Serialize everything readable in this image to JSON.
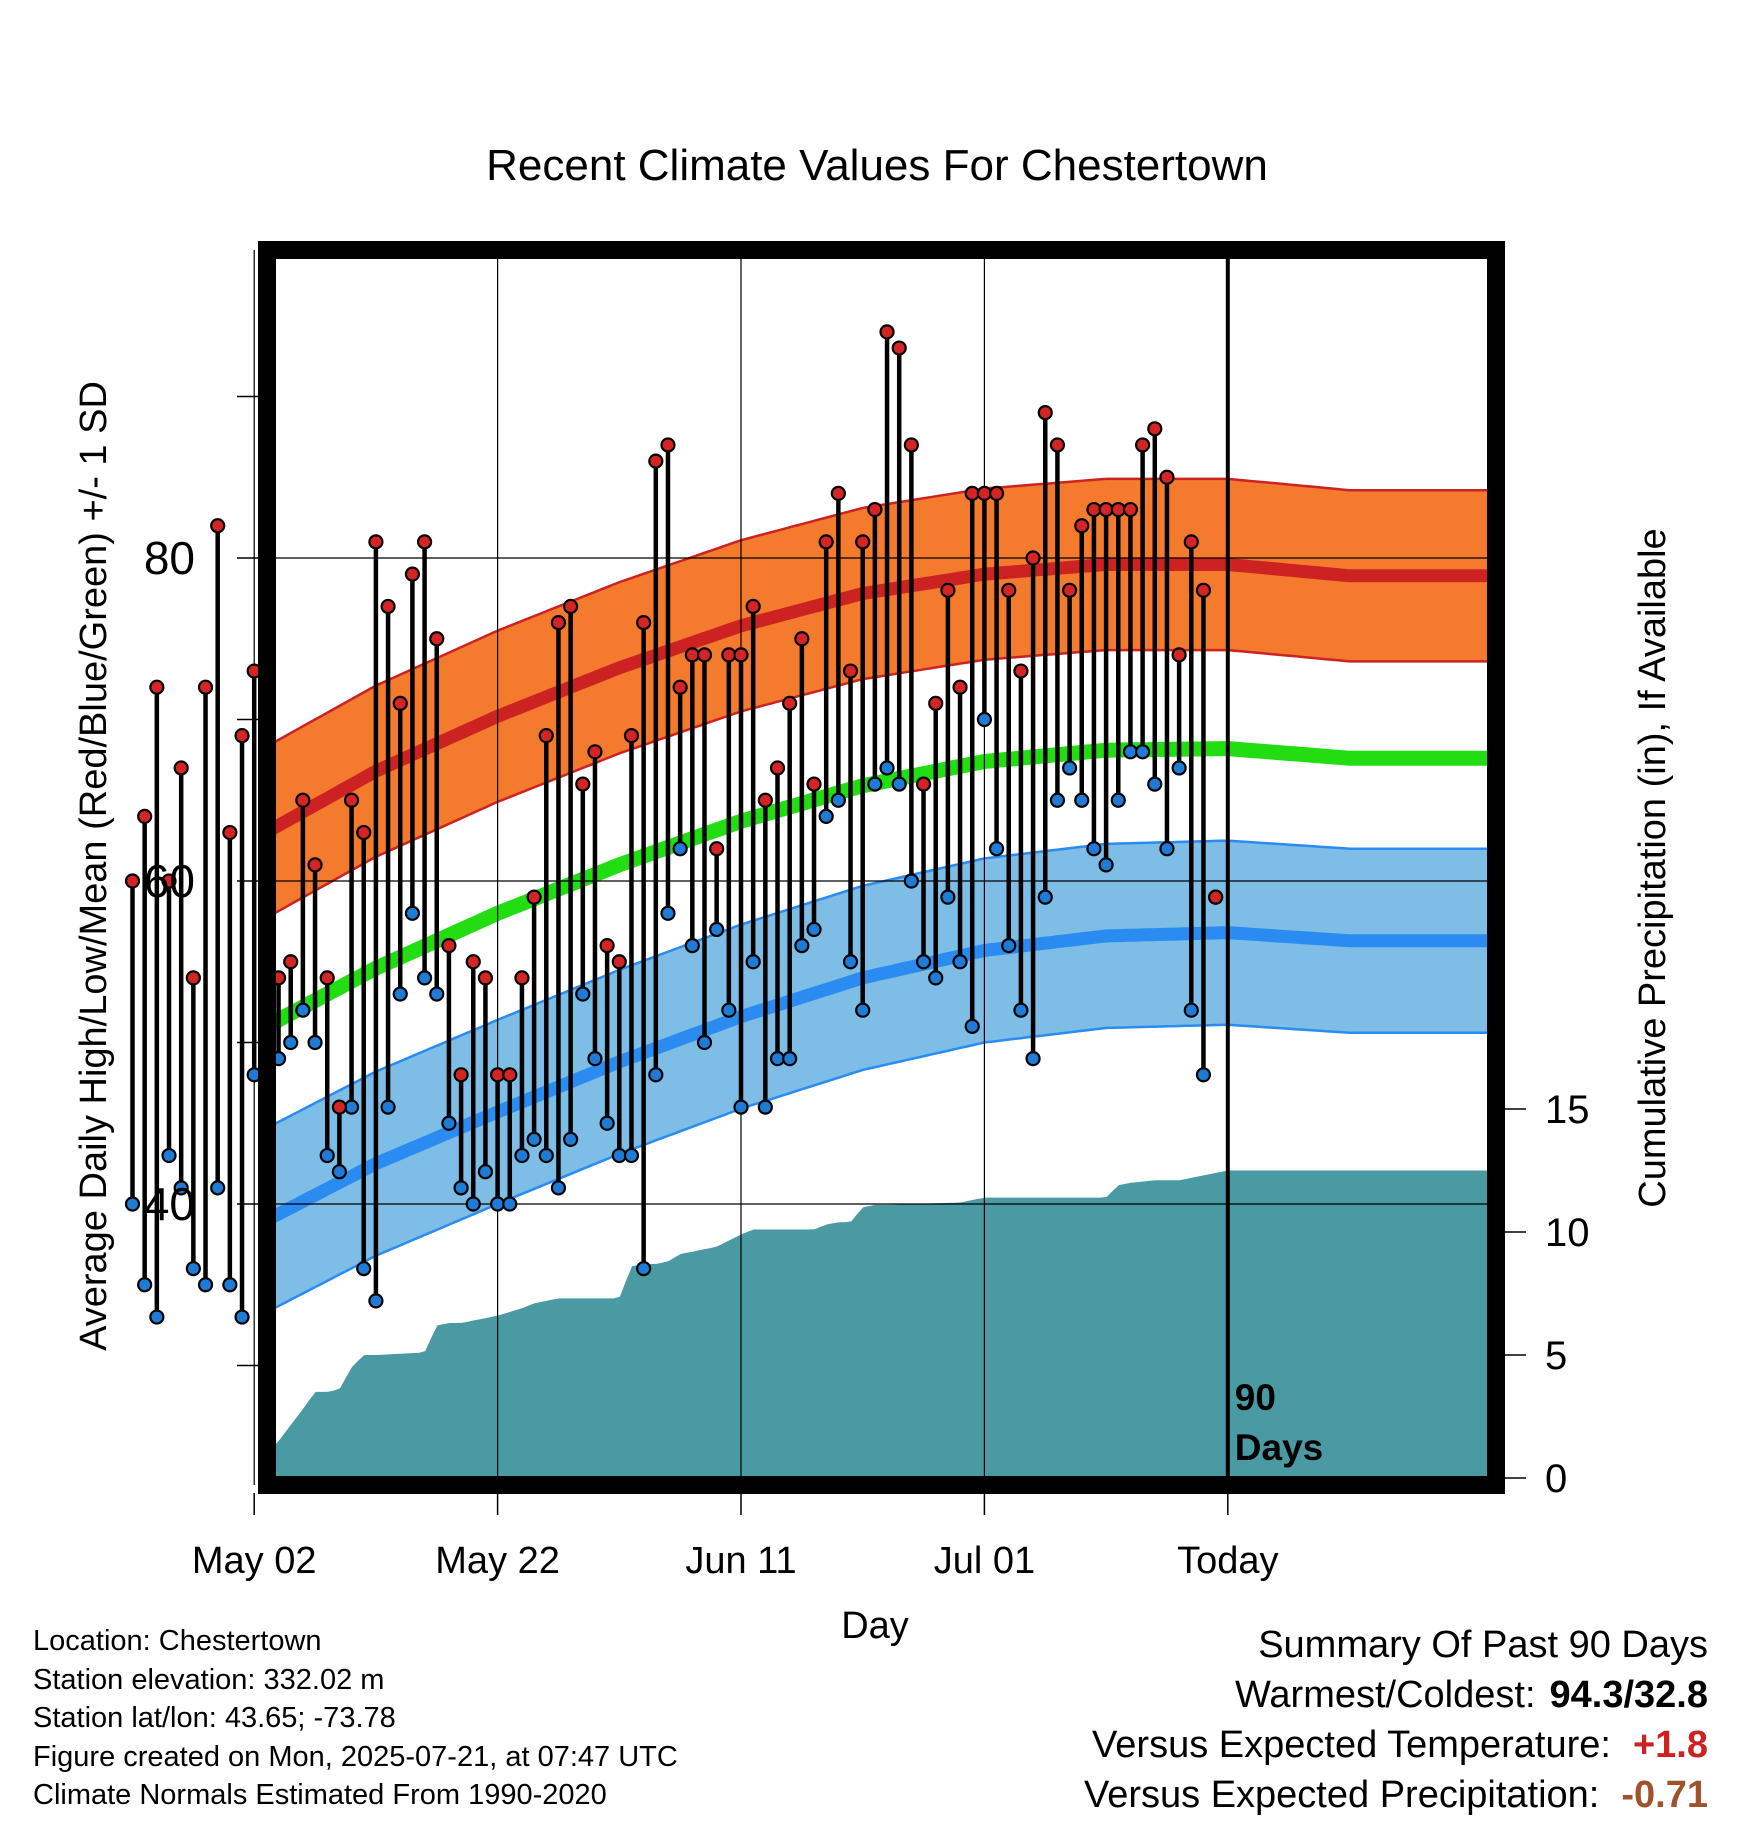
{
  "colors": {
    "high_band": "#f47a2e",
    "high_band_edge": "#cc2222",
    "high_mean": "#cc2222",
    "low_band": "#7dbde6",
    "low_band_edge": "#2a8cf0",
    "low_mean": "#2a8cf0",
    "mean_line": "#22dd11",
    "precip_fill": "#4a9aa4",
    "high_marker": "#d42424",
    "low_marker": "#1f7cd6",
    "warm_value": "#cc2222",
    "precip_value": "#a0522d"
  },
  "chart_data": {
    "type": "line",
    "title": "Recent Climate Values For Chestertown",
    "xlabel": "Day",
    "ylabel": "Average Daily High/Low/Mean (Red/Blue/Green) +/- 1 SD",
    "y2label": "Cumulative Precipitation (in), If Available",
    "xlim": [
      0,
      100
    ],
    "ylim": [
      24,
      100
    ],
    "y2lim": [
      0,
      50
    ],
    "yticks": [
      40,
      60,
      80
    ],
    "y2ticks": [
      0,
      5,
      10,
      15
    ],
    "x_tick_days": [
      10,
      30,
      50,
      70,
      90
    ],
    "x_tick_labels": [
      "May 02",
      "May 22",
      "Jun 11",
      "Jul 01",
      "Today"
    ],
    "today_marker": {
      "day": 90,
      "label": [
        "90",
        "Days"
      ]
    },
    "grid": true,
    "normal_high": {
      "days": [
        0,
        10,
        20,
        30,
        40,
        50,
        60,
        70,
        80,
        90,
        100
      ],
      "mean": [
        57.5,
        62.6,
        66.8,
        70.2,
        73.2,
        75.8,
        77.8,
        79,
        79.6,
        79.6,
        78.9
      ],
      "sd": [
        5.3
      ]
    },
    "normal_low": {
      "days": [
        0,
        10,
        20,
        30,
        40,
        50,
        60,
        70,
        80,
        90,
        100
      ],
      "mean": [
        34.2,
        38.6,
        42.5,
        45.7,
        48.8,
        51.6,
        54,
        55.7,
        56.6,
        56.8,
        56.3
      ],
      "sd": [
        5.7
      ]
    },
    "normal_mean": {
      "days": [
        0,
        10,
        20,
        30,
        40,
        50,
        60,
        70,
        80,
        90,
        100
      ],
      "values": [
        45.9,
        50.6,
        54.6,
        58,
        61,
        63.7,
        65.9,
        67.4,
        68.1,
        68.2,
        67.6
      ]
    },
    "precip_cumulative": {
      "days": [
        0,
        5,
        9,
        10,
        12,
        14,
        15,
        16,
        17,
        18,
        19,
        20,
        24,
        25,
        26,
        27,
        28,
        30,
        32,
        33,
        34,
        35,
        36,
        38,
        40,
        41,
        42,
        43,
        44,
        45,
        46,
        47,
        48,
        50,
        51,
        56,
        57,
        58,
        59,
        60,
        61,
        62,
        68,
        69,
        70,
        72,
        74,
        80,
        81,
        82,
        84,
        86,
        87,
        88,
        89,
        90,
        100
      ],
      "values": [
        0,
        0,
        0.1,
        0.5,
        1.5,
        2.8,
        3.5,
        3.5,
        3.6,
        4.5,
        5,
        5,
        5.1,
        6.2,
        6.3,
        6.3,
        6.4,
        6.6,
        6.9,
        7.1,
        7.2,
        7.3,
        7.3,
        7.3,
        7.3,
        8.6,
        8.7,
        8.7,
        8.8,
        9.1,
        9.2,
        9.3,
        9.4,
        9.9,
        10.1,
        10.1,
        10.3,
        10.4,
        10.4,
        11,
        11.1,
        11.1,
        11.2,
        11.3,
        11.4,
        11.4,
        11.4,
        11.4,
        11.9,
        12,
        12.1,
        12.1,
        12.2,
        12.3,
        12.4,
        12.5,
        12.5
      ]
    },
    "series": [
      {
        "name": "High",
        "days": [
          0,
          1,
          2,
          3,
          4,
          5,
          6,
          7,
          8,
          9,
          10,
          11,
          12,
          13,
          14,
          15,
          16,
          17,
          18,
          19,
          20,
          21,
          22,
          23,
          24,
          25,
          26,
          27,
          28,
          29,
          30,
          31,
          32,
          33,
          34,
          35,
          36,
          37,
          38,
          39,
          40,
          41,
          42,
          43,
          44,
          45,
          46,
          47,
          48,
          49,
          50,
          51,
          52,
          53,
          54,
          55,
          56,
          57,
          58,
          59,
          60,
          61,
          62,
          63,
          64,
          65,
          66,
          67,
          68,
          69,
          70,
          71,
          72,
          73,
          74,
          75,
          76,
          77,
          78,
          79,
          80,
          81,
          82,
          83,
          84,
          85,
          86,
          87,
          88,
          89
        ],
        "values": [
          60,
          64,
          72,
          60,
          67,
          54,
          72,
          82,
          63,
          69,
          73,
          61,
          54,
          55,
          65,
          61,
          54,
          46,
          65,
          63,
          81,
          77,
          71,
          79,
          81,
          75,
          56,
          48,
          55,
          54,
          48,
          48,
          54,
          59,
          69,
          76,
          77,
          66,
          68,
          56,
          55,
          69,
          76,
          86,
          87,
          72,
          74,
          74,
          62,
          74,
          74,
          77,
          65,
          67,
          71,
          75,
          66,
          81,
          84,
          73,
          81,
          83,
          94,
          93,
          87,
          66,
          71,
          78,
          72,
          84,
          84,
          84,
          78,
          73,
          80,
          89,
          87,
          78,
          82,
          83,
          83,
          83,
          83,
          87,
          88,
          85,
          74,
          81,
          78,
          59
        ]
      },
      {
        "name": "Low",
        "days": [
          0,
          1,
          2,
          3,
          4,
          5,
          6,
          7,
          8,
          9,
          10,
          11,
          12,
          13,
          14,
          15,
          16,
          17,
          18,
          19,
          20,
          21,
          22,
          23,
          24,
          25,
          26,
          27,
          28,
          29,
          30,
          31,
          32,
          33,
          34,
          35,
          36,
          37,
          38,
          39,
          40,
          41,
          42,
          43,
          44,
          45,
          46,
          47,
          48,
          49,
          50,
          51,
          52,
          53,
          54,
          55,
          56,
          57,
          58,
          59,
          60,
          61,
          62,
          63,
          64,
          65,
          66,
          67,
          68,
          69,
          70,
          71,
          72,
          73,
          74,
          75,
          76,
          77,
          78,
          79,
          80,
          81,
          82,
          83,
          84,
          85,
          86,
          87,
          88,
          89
        ],
        "values": [
          40,
          35,
          33,
          43,
          41,
          36,
          35,
          41,
          35,
          33,
          48,
          50,
          49,
          50,
          52,
          50,
          43,
          42,
          46,
          36,
          34,
          46,
          53,
          58,
          54,
          53,
          45,
          41,
          40,
          42,
          40,
          40,
          43,
          44,
          43,
          41,
          44,
          53,
          49,
          45,
          43,
          43,
          36,
          48,
          58,
          62,
          56,
          50,
          57,
          52,
          46,
          55,
          46,
          49,
          49,
          56,
          57,
          64,
          65,
          55,
          52,
          66,
          67,
          66,
          60,
          55,
          54,
          59,
          55,
          51,
          70,
          62,
          56,
          52,
          49,
          59,
          65,
          67,
          65,
          62,
          61,
          65,
          68,
          68,
          66,
          62,
          67,
          52,
          48,
          59
        ]
      }
    ]
  },
  "info": {
    "location": "Location: Chestertown",
    "elevation": "Station elevation: 332.02 m",
    "latlon": "Station lat/lon: 43.65; -73.78",
    "created": "Figure created on Mon, 2025-07-21, at 07:47 UTC",
    "normals": "Climate Normals Estimated From 1990-2020"
  },
  "summary": {
    "heading": "Summary Of Past 90 Days",
    "warm_cold_label": "Warmest/Coldest:",
    "warm_cold_value": "94.3/32.8",
    "temp_label": "Versus Expected Temperature:",
    "temp_value": "+1.8",
    "precip_label": "Versus Expected Precipitation:",
    "precip_value": "-0.71"
  }
}
